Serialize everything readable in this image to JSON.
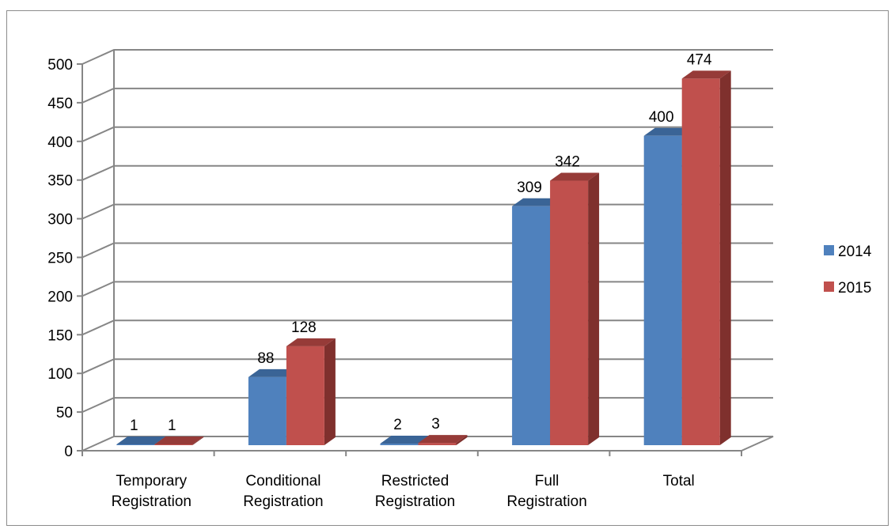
{
  "chart_data": {
    "type": "bar",
    "style": "3d-clustered-column",
    "categories": [
      [
        "Temporary",
        "Registration"
      ],
      [
        "Conditional",
        "Registration"
      ],
      [
        "Restricted",
        "Registration"
      ],
      [
        "Full",
        "Registration"
      ],
      [
        "Total"
      ]
    ],
    "series": [
      {
        "name": "2014",
        "values": [
          1,
          88,
          2,
          309,
          400
        ],
        "color": "#4f81bd",
        "top_color": "#3a6496",
        "side_color": "#345a88"
      },
      {
        "name": "2015",
        "values": [
          1,
          128,
          3,
          342,
          474
        ],
        "color": "#c0504d",
        "top_color": "#963b38",
        "side_color": "#7f302d"
      }
    ],
    "ylim": [
      0,
      500
    ],
    "yticks": [
      0,
      50,
      100,
      150,
      200,
      250,
      300,
      350,
      400,
      450,
      500
    ],
    "grid": true,
    "legend_position": "right",
    "data_labels": true,
    "axis_color": "#868686",
    "grid_color": "#868686"
  }
}
